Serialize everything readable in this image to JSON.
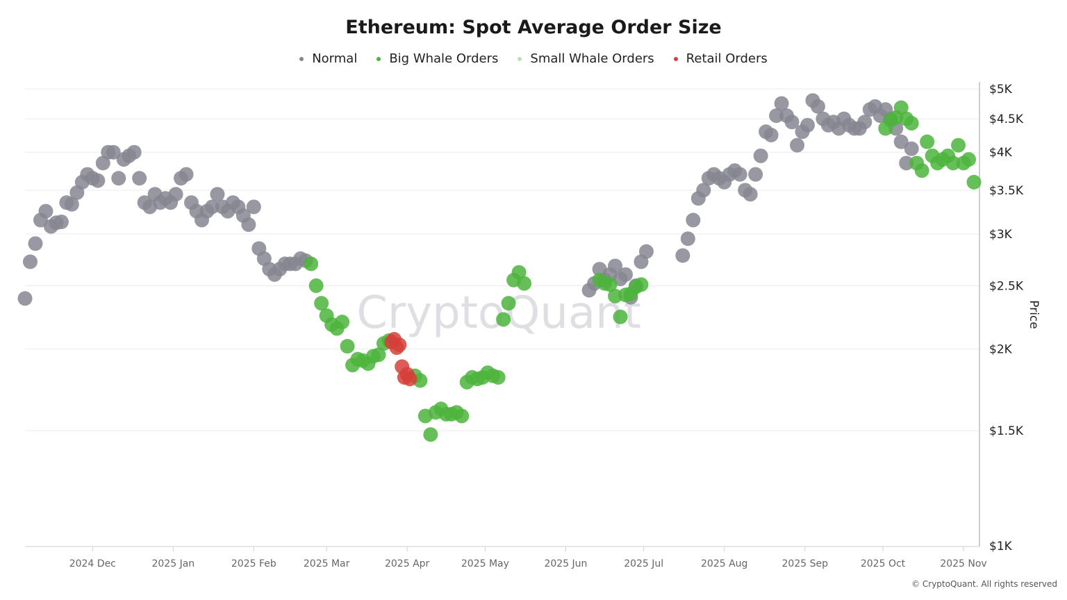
{
  "chart_data": {
    "type": "scatter",
    "title": "Ethereum: Spot Average Order Size",
    "ylabel": "Price",
    "y_scale": "log",
    "ylim": [
      1000,
      5000
    ],
    "y_ticks": [
      {
        "value": 1000,
        "label": "$1K"
      },
      {
        "value": 1500,
        "label": "$1.5K"
      },
      {
        "value": 2000,
        "label": "$2K"
      },
      {
        "value": 2500,
        "label": "$2.5K"
      },
      {
        "value": 3000,
        "label": "$3K"
      },
      {
        "value": 3500,
        "label": "$3.5K"
      },
      {
        "value": 4000,
        "label": "$4K"
      },
      {
        "value": 4500,
        "label": "$4.5K"
      },
      {
        "value": 5000,
        "label": "$5K"
      }
    ],
    "xlim": [
      "2024-11-05",
      "2025-11-05"
    ],
    "x_ticks": [
      {
        "date": "2024-12-01",
        "label": "2024 Dec"
      },
      {
        "date": "2025-01-01",
        "label": "2025 Jan"
      },
      {
        "date": "2025-02-01",
        "label": "2025 Feb"
      },
      {
        "date": "2025-03-01",
        "label": "2025 Mar"
      },
      {
        "date": "2025-04-01",
        "label": "2025 Apr"
      },
      {
        "date": "2025-05-01",
        "label": "2025 May"
      },
      {
        "date": "2025-06-01",
        "label": "2025 Jun"
      },
      {
        "date": "2025-07-01",
        "label": "2025 Jul"
      },
      {
        "date": "2025-08-01",
        "label": "2025 Aug"
      },
      {
        "date": "2025-09-01",
        "label": "2025 Sep"
      },
      {
        "date": "2025-10-01",
        "label": "2025 Oct"
      },
      {
        "date": "2025-11-01",
        "label": "2025 Nov"
      }
    ],
    "grid": true,
    "legend_position": "top-center",
    "series": [
      {
        "name": "Normal",
        "color": "#868692",
        "points": [
          [
            "2024-11-05",
            2390
          ],
          [
            "2024-11-07",
            2720
          ],
          [
            "2024-11-09",
            2900
          ],
          [
            "2024-11-11",
            3150
          ],
          [
            "2024-11-13",
            3250
          ],
          [
            "2024-11-15",
            3080
          ],
          [
            "2024-11-17",
            3120
          ],
          [
            "2024-11-19",
            3130
          ],
          [
            "2024-11-21",
            3350
          ],
          [
            "2024-11-23",
            3330
          ],
          [
            "2024-11-25",
            3470
          ],
          [
            "2024-11-27",
            3600
          ],
          [
            "2024-11-29",
            3700
          ],
          [
            "2024-12-01",
            3650
          ],
          [
            "2024-12-03",
            3620
          ],
          [
            "2024-12-05",
            3850
          ],
          [
            "2024-12-07",
            4000
          ],
          [
            "2024-12-09",
            4000
          ],
          [
            "2024-12-11",
            3650
          ],
          [
            "2024-12-13",
            3900
          ],
          [
            "2024-12-15",
            3950
          ],
          [
            "2024-12-17",
            4000
          ],
          [
            "2024-12-19",
            3650
          ],
          [
            "2024-12-21",
            3350
          ],
          [
            "2024-12-23",
            3300
          ],
          [
            "2024-12-25",
            3450
          ],
          [
            "2024-12-27",
            3350
          ],
          [
            "2024-12-29",
            3400
          ],
          [
            "2024-12-31",
            3350
          ],
          [
            "2025-01-02",
            3450
          ],
          [
            "2025-01-04",
            3650
          ],
          [
            "2025-01-06",
            3700
          ],
          [
            "2025-01-08",
            3350
          ],
          [
            "2025-01-10",
            3250
          ],
          [
            "2025-01-12",
            3150
          ],
          [
            "2025-01-14",
            3250
          ],
          [
            "2025-01-16",
            3300
          ],
          [
            "2025-01-18",
            3450
          ],
          [
            "2025-01-20",
            3300
          ],
          [
            "2025-01-22",
            3250
          ],
          [
            "2025-01-24",
            3350
          ],
          [
            "2025-01-26",
            3300
          ],
          [
            "2025-01-28",
            3200
          ],
          [
            "2025-01-30",
            3100
          ],
          [
            "2025-02-01",
            3300
          ],
          [
            "2025-02-03",
            2850
          ],
          [
            "2025-02-05",
            2750
          ],
          [
            "2025-02-07",
            2650
          ],
          [
            "2025-02-09",
            2600
          ],
          [
            "2025-02-11",
            2650
          ],
          [
            "2025-02-13",
            2700
          ],
          [
            "2025-02-15",
            2700
          ],
          [
            "2025-02-17",
            2700
          ],
          [
            "2025-02-19",
            2750
          ],
          [
            "2025-02-21",
            2730
          ],
          [
            "2025-06-10",
            2460
          ],
          [
            "2025-06-12",
            2520
          ],
          [
            "2025-06-14",
            2650
          ],
          [
            "2025-06-16",
            2550
          ],
          [
            "2025-06-18",
            2600
          ],
          [
            "2025-06-20",
            2680
          ],
          [
            "2025-06-22",
            2560
          ],
          [
            "2025-06-24",
            2600
          ],
          [
            "2025-06-26",
            2400
          ],
          [
            "2025-06-28",
            2500
          ],
          [
            "2025-06-30",
            2720
          ],
          [
            "2025-07-02",
            2820
          ],
          [
            "2025-07-16",
            2780
          ],
          [
            "2025-07-18",
            2950
          ],
          [
            "2025-07-20",
            3150
          ],
          [
            "2025-07-22",
            3400
          ],
          [
            "2025-07-24",
            3500
          ],
          [
            "2025-07-26",
            3650
          ],
          [
            "2025-07-28",
            3700
          ],
          [
            "2025-07-30",
            3650
          ],
          [
            "2025-08-01",
            3600
          ],
          [
            "2025-08-03",
            3700
          ],
          [
            "2025-08-05",
            3750
          ],
          [
            "2025-08-07",
            3700
          ],
          [
            "2025-08-09",
            3500
          ],
          [
            "2025-08-11",
            3450
          ],
          [
            "2025-08-13",
            3700
          ],
          [
            "2025-08-15",
            3950
          ],
          [
            "2025-08-17",
            4300
          ],
          [
            "2025-08-19",
            4250
          ],
          [
            "2025-08-21",
            4550
          ],
          [
            "2025-08-23",
            4750
          ],
          [
            "2025-08-25",
            4550
          ],
          [
            "2025-08-27",
            4450
          ],
          [
            "2025-08-29",
            4100
          ],
          [
            "2025-08-31",
            4300
          ],
          [
            "2025-09-02",
            4400
          ],
          [
            "2025-09-04",
            4800
          ],
          [
            "2025-09-06",
            4700
          ],
          [
            "2025-09-08",
            4500
          ],
          [
            "2025-09-10",
            4400
          ],
          [
            "2025-09-12",
            4450
          ],
          [
            "2025-09-14",
            4350
          ],
          [
            "2025-09-16",
            4500
          ],
          [
            "2025-09-18",
            4400
          ],
          [
            "2025-09-20",
            4350
          ],
          [
            "2025-09-22",
            4350
          ],
          [
            "2025-09-24",
            4450
          ],
          [
            "2025-09-26",
            4650
          ],
          [
            "2025-09-28",
            4700
          ],
          [
            "2025-09-30",
            4550
          ],
          [
            "2025-10-02",
            4650
          ],
          [
            "2025-10-04",
            4500
          ],
          [
            "2025-10-06",
            4350
          ],
          [
            "2025-10-08",
            4150
          ],
          [
            "2025-10-10",
            3850
          ],
          [
            "2025-10-12",
            4050
          ]
        ]
      },
      {
        "name": "Big Whale Orders",
        "color": "#4cb43c",
        "points": [
          [
            "2025-02-23",
            2700
          ],
          [
            "2025-02-25",
            2500
          ],
          [
            "2025-02-27",
            2350
          ],
          [
            "2025-03-01",
            2250
          ],
          [
            "2025-03-03",
            2180
          ],
          [
            "2025-03-05",
            2150
          ],
          [
            "2025-03-07",
            2200
          ],
          [
            "2025-03-09",
            2020
          ],
          [
            "2025-03-11",
            1890
          ],
          [
            "2025-03-13",
            1930
          ],
          [
            "2025-03-15",
            1920
          ],
          [
            "2025-03-17",
            1900
          ],
          [
            "2025-03-19",
            1950
          ],
          [
            "2025-03-21",
            1960
          ],
          [
            "2025-03-23",
            2040
          ],
          [
            "2025-03-25",
            2060
          ],
          [
            "2025-04-04",
            1820
          ],
          [
            "2025-04-06",
            1790
          ],
          [
            "2025-04-08",
            1580
          ],
          [
            "2025-04-10",
            1480
          ],
          [
            "2025-04-12",
            1600
          ],
          [
            "2025-04-14",
            1620
          ],
          [
            "2025-04-16",
            1590
          ],
          [
            "2025-04-18",
            1590
          ],
          [
            "2025-04-20",
            1600
          ],
          [
            "2025-04-22",
            1580
          ],
          [
            "2025-04-24",
            1780
          ],
          [
            "2025-04-26",
            1810
          ],
          [
            "2025-04-28",
            1800
          ],
          [
            "2025-04-30",
            1810
          ],
          [
            "2025-05-02",
            1840
          ],
          [
            "2025-05-04",
            1820
          ],
          [
            "2025-05-06",
            1810
          ],
          [
            "2025-05-08",
            2220
          ],
          [
            "2025-05-10",
            2350
          ],
          [
            "2025-05-12",
            2550
          ],
          [
            "2025-05-14",
            2620
          ],
          [
            "2025-05-16",
            2520
          ],
          [
            "2025-06-14",
            2550
          ],
          [
            "2025-06-16",
            2520
          ],
          [
            "2025-06-18",
            2510
          ],
          [
            "2025-06-20",
            2410
          ],
          [
            "2025-06-22",
            2240
          ],
          [
            "2025-06-24",
            2420
          ],
          [
            "2025-06-26",
            2430
          ],
          [
            "2025-06-28",
            2490
          ],
          [
            "2025-06-30",
            2510
          ],
          [
            "2025-10-02",
            4350
          ],
          [
            "2025-10-04",
            4480
          ],
          [
            "2025-10-06",
            4520
          ],
          [
            "2025-10-08",
            4680
          ],
          [
            "2025-10-10",
            4500
          ],
          [
            "2025-10-12",
            4430
          ],
          [
            "2025-10-14",
            3850
          ],
          [
            "2025-10-16",
            3750
          ],
          [
            "2025-10-18",
            4150
          ],
          [
            "2025-10-20",
            3950
          ],
          [
            "2025-10-22",
            3850
          ],
          [
            "2025-10-24",
            3900
          ],
          [
            "2025-10-26",
            3950
          ],
          [
            "2025-10-28",
            3850
          ],
          [
            "2025-10-30",
            4100
          ],
          [
            "2025-11-01",
            3850
          ],
          [
            "2025-11-03",
            3900
          ],
          [
            "2025-11-05",
            3600
          ]
        ]
      },
      {
        "name": "Small Whale Orders",
        "color": "#b6e3ae",
        "points": []
      },
      {
        "name": "Retail Orders",
        "color": "#d63f3a",
        "points": [
          [
            "2025-03-26",
            2050
          ],
          [
            "2025-03-27",
            2070
          ],
          [
            "2025-03-28",
            2010
          ],
          [
            "2025-03-29",
            2030
          ],
          [
            "2025-03-30",
            1880
          ],
          [
            "2025-03-31",
            1810
          ],
          [
            "2025-04-01",
            1830
          ],
          [
            "2025-04-02",
            1800
          ]
        ]
      }
    ]
  },
  "credit": "© CryptoQuant. All rights reserved",
  "watermark": "CryptoQuant"
}
